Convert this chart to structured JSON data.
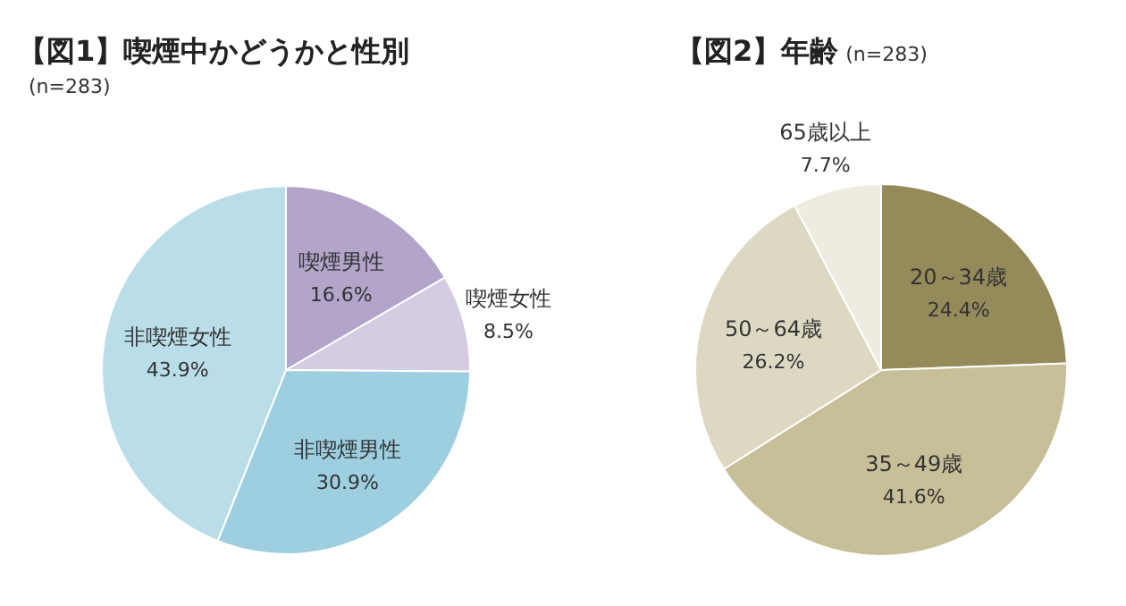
{
  "chart_data": [
    {
      "type": "pie",
      "title": "【図1】喫煙中かどうかと性別",
      "subtitle": "(n=283)",
      "categories": [
        "喫煙男性",
        "喫煙女性",
        "非喫煙男性",
        "非喫煙女性"
      ],
      "values": [
        16.6,
        8.5,
        30.9,
        43.9
      ],
      "value_labels": [
        "16.6%",
        "8.5%",
        "30.9%",
        "43.9%"
      ],
      "colors": [
        "#b3a4ca",
        "#d5cbe2",
        "#9dcfe1",
        "#badee9"
      ]
    },
    {
      "type": "pie",
      "title": "【図2】年齢",
      "subtitle": "(n=283)",
      "categories": [
        "20～34歳",
        "35～49歳",
        "50～64歳",
        "65歳以上"
      ],
      "values": [
        24.4,
        41.6,
        26.2,
        7.7
      ],
      "value_labels": [
        "24.4%",
        "41.6%",
        "26.2%",
        "7.7%"
      ],
      "colors": [
        "#958b5a",
        "#c6bf98",
        "#ddd8c1",
        "#eeebe1"
      ]
    }
  ]
}
